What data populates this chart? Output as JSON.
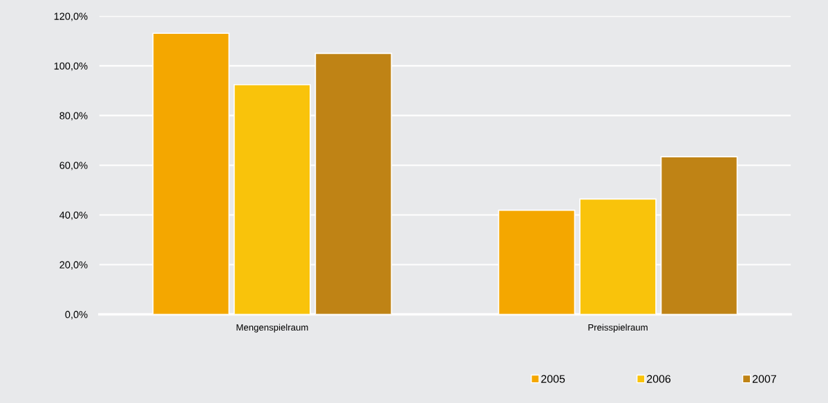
{
  "chart_data": {
    "type": "bar",
    "categories": [
      "Mengenspielraum",
      "Preisspielraum"
    ],
    "series": [
      {
        "name": "2005",
        "color": "#f4a700",
        "values": [
          113.1,
          41.9
        ]
      },
      {
        "name": "2006",
        "color": "#f9c30b",
        "values": [
          92.4,
          46.4
        ]
      },
      {
        "name": "2007",
        "color": "#bf8315",
        "values": [
          105.0,
          63.4
        ]
      }
    ],
    "ylim": [
      0,
      120
    ],
    "yticks": [
      {
        "value": 0,
        "label": "0,0%"
      },
      {
        "value": 20,
        "label": "20,0%"
      },
      {
        "value": 40,
        "label": "40,0%"
      },
      {
        "value": 60,
        "label": "60,0%"
      },
      {
        "value": 80,
        "label": "80,0%"
      },
      {
        "value": 100,
        "label": "100,0%"
      },
      {
        "value": 120,
        "label": "120,0%"
      }
    ],
    "grid": "y",
    "legend": "bottom right"
  }
}
